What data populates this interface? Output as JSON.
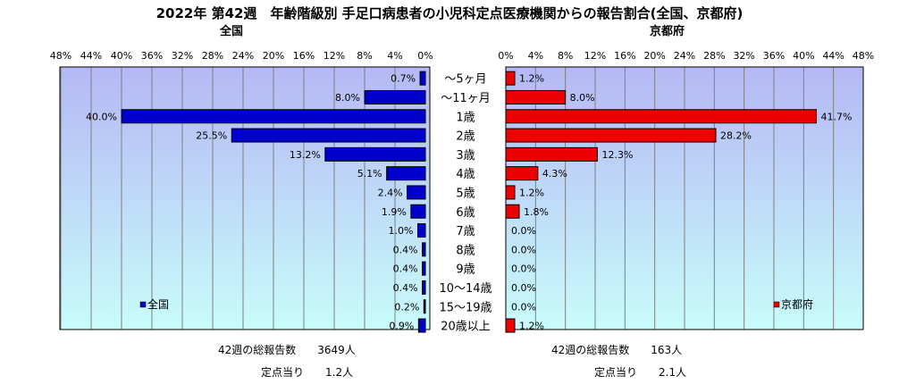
{
  "chart_data": {
    "type": "bar",
    "title": "2022年 第42週　年齢階級別 手足口病患者の小児科定点医療機関からの報告割合(全国、京都府)",
    "categories": [
      "～5ヶ月",
      "～11ヶ月",
      "1歳",
      "2歳",
      "3歳",
      "4歳",
      "5歳",
      "6歳",
      "7歳",
      "8歳",
      "9歳",
      "10～14歳",
      "15～19歳",
      "20歳以上"
    ],
    "xlim": [
      0,
      48
    ],
    "ticks": [
      "0%",
      "4%",
      "8%",
      "12%",
      "16%",
      "20%",
      "24%",
      "28%",
      "32%",
      "36%",
      "40%",
      "44%",
      "48%"
    ],
    "grid": true,
    "series": [
      {
        "name": "全国",
        "subtitle": "全国",
        "color": "#0000cc",
        "values": [
          0.7,
          8.0,
          40.0,
          25.5,
          13.2,
          5.1,
          2.4,
          1.9,
          1.0,
          0.4,
          0.4,
          0.4,
          0.2,
          0.9
        ],
        "labels": [
          "0.7%",
          "8.0%",
          "40.0%",
          "25.5%",
          "13.2%",
          "5.1%",
          "2.4%",
          "1.9%",
          "1.0%",
          "0.4%",
          "0.4%",
          "0.4%",
          "0.2%",
          "0.9%"
        ],
        "legend": "全国"
      },
      {
        "name": "京都府",
        "subtitle": "京都府",
        "color": "#ee0000",
        "values": [
          1.2,
          8.0,
          41.7,
          28.2,
          12.3,
          4.3,
          1.2,
          1.8,
          0.0,
          0.0,
          0.0,
          0.0,
          0.0,
          1.2
        ],
        "labels": [
          "1.2%",
          "8.0%",
          "41.7%",
          "28.2%",
          "12.3%",
          "4.3%",
          "1.2%",
          "1.8%",
          "0.0%",
          "0.0%",
          "0.0%",
          "0.0%",
          "0.0%",
          "1.2%"
        ],
        "legend": "京都府"
      }
    ]
  },
  "footer": {
    "national_total": "42週の総報告数　　3649人",
    "national_per": "定点当り　　1.2人",
    "kyoto_total": "42週の総報告数　　163人",
    "kyoto_per": "定点当り　　2.1人"
  },
  "colors": {
    "plot_top": "#b5b8f4",
    "plot_bottom": "#c8fcfb",
    "grid": "#7f7f7f"
  }
}
